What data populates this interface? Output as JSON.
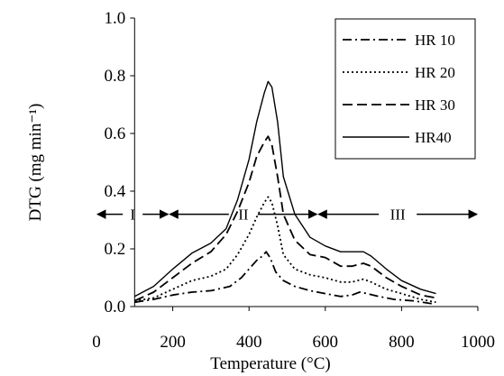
{
  "chart_data": {
    "type": "line",
    "title": "",
    "xlabel": "Temperature",
    "xlabel_unit": "(°C)",
    "ylabel": "DTG",
    "ylabel_unit": "(mg min⁻¹)",
    "xlim": [
      0,
      1000
    ],
    "ylim": [
      0,
      1.0
    ],
    "x_ticks": [
      0,
      200,
      400,
      600,
      800,
      1000
    ],
    "x_tick_labels": [
      "0",
      "200",
      "400",
      "600",
      "800",
      "1000"
    ],
    "y_ticks": [
      0.0,
      0.2,
      0.4,
      0.6,
      0.8,
      1.0
    ],
    "y_tick_labels": [
      "0.0",
      "0.2",
      "0.4",
      "0.6",
      "0.8",
      "1.0"
    ],
    "grid": false,
    "legend_position": "top-right",
    "series": [
      {
        "name": "HR 10",
        "style": "dash-dot",
        "points": [
          [
            100,
            0.015
          ],
          [
            150,
            0.025
          ],
          [
            200,
            0.04
          ],
          [
            250,
            0.05
          ],
          [
            300,
            0.055
          ],
          [
            350,
            0.07
          ],
          [
            380,
            0.1
          ],
          [
            400,
            0.13
          ],
          [
            420,
            0.16
          ],
          [
            435,
            0.175
          ],
          [
            445,
            0.19
          ],
          [
            455,
            0.17
          ],
          [
            470,
            0.12
          ],
          [
            490,
            0.09
          ],
          [
            520,
            0.07
          ],
          [
            560,
            0.055
          ],
          [
            600,
            0.045
          ],
          [
            640,
            0.035
          ],
          [
            670,
            0.04
          ],
          [
            690,
            0.05
          ],
          [
            710,
            0.045
          ],
          [
            740,
            0.035
          ],
          [
            780,
            0.025
          ],
          [
            830,
            0.02
          ],
          [
            880,
            0.01
          ]
        ]
      },
      {
        "name": "HR 20",
        "style": "dotted",
        "points": [
          [
            100,
            0.02
          ],
          [
            150,
            0.03
          ],
          [
            200,
            0.06
          ],
          [
            250,
            0.09
          ],
          [
            300,
            0.105
          ],
          [
            340,
            0.13
          ],
          [
            370,
            0.18
          ],
          [
            400,
            0.25
          ],
          [
            420,
            0.31
          ],
          [
            440,
            0.36
          ],
          [
            450,
            0.38
          ],
          [
            460,
            0.36
          ],
          [
            475,
            0.28
          ],
          [
            490,
            0.18
          ],
          [
            520,
            0.13
          ],
          [
            560,
            0.11
          ],
          [
            600,
            0.1
          ],
          [
            640,
            0.085
          ],
          [
            670,
            0.085
          ],
          [
            700,
            0.095
          ],
          [
            720,
            0.085
          ],
          [
            760,
            0.06
          ],
          [
            800,
            0.045
          ],
          [
            850,
            0.025
          ],
          [
            890,
            0.015
          ]
        ]
      },
      {
        "name": "HR 30",
        "style": "dashed",
        "points": [
          [
            100,
            0.02
          ],
          [
            150,
            0.05
          ],
          [
            200,
            0.1
          ],
          [
            250,
            0.15
          ],
          [
            300,
            0.19
          ],
          [
            340,
            0.25
          ],
          [
            370,
            0.33
          ],
          [
            400,
            0.43
          ],
          [
            420,
            0.52
          ],
          [
            440,
            0.57
          ],
          [
            450,
            0.59
          ],
          [
            460,
            0.56
          ],
          [
            475,
            0.45
          ],
          [
            490,
            0.32
          ],
          [
            520,
            0.23
          ],
          [
            560,
            0.18
          ],
          [
            600,
            0.17
          ],
          [
            640,
            0.14
          ],
          [
            670,
            0.14
          ],
          [
            700,
            0.15
          ],
          [
            720,
            0.14
          ],
          [
            760,
            0.1
          ],
          [
            800,
            0.07
          ],
          [
            850,
            0.04
          ],
          [
            890,
            0.03
          ]
        ]
      },
      {
        "name": "HR40",
        "style": "solid",
        "points": [
          [
            100,
            0.035
          ],
          [
            150,
            0.07
          ],
          [
            200,
            0.13
          ],
          [
            250,
            0.185
          ],
          [
            300,
            0.22
          ],
          [
            340,
            0.27
          ],
          [
            370,
            0.37
          ],
          [
            400,
            0.51
          ],
          [
            420,
            0.64
          ],
          [
            440,
            0.74
          ],
          [
            450,
            0.78
          ],
          [
            460,
            0.76
          ],
          [
            475,
            0.64
          ],
          [
            490,
            0.45
          ],
          [
            520,
            0.32
          ],
          [
            560,
            0.24
          ],
          [
            600,
            0.21
          ],
          [
            640,
            0.19
          ],
          [
            670,
            0.19
          ],
          [
            700,
            0.19
          ],
          [
            720,
            0.175
          ],
          [
            760,
            0.13
          ],
          [
            800,
            0.09
          ],
          [
            850,
            0.06
          ],
          [
            890,
            0.045
          ]
        ]
      }
    ],
    "regions": [
      {
        "label": "I",
        "from": 0,
        "to": 190,
        "y": 0.32
      },
      {
        "label": "II",
        "from": 190,
        "to": 580,
        "y": 0.32
      },
      {
        "label": "III",
        "from": 580,
        "to": 1000,
        "y": 0.32
      }
    ]
  }
}
